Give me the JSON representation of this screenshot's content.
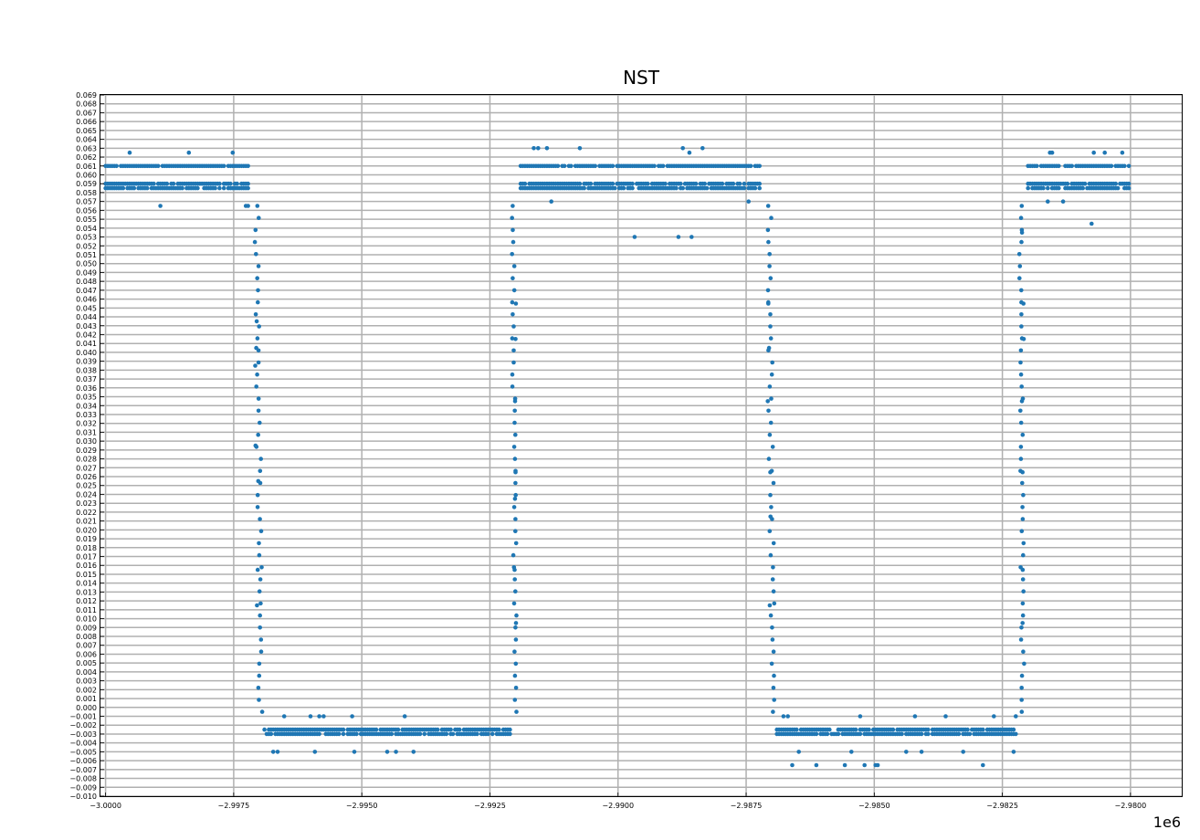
{
  "chart_data": {
    "type": "scatter",
    "title": "NST",
    "xlabel": "",
    "ylabel": "",
    "x_offset_label": "1e6",
    "xlim": [
      -3000100,
      -2979000
    ],
    "ylim": [
      -0.01,
      0.069
    ],
    "grid": true,
    "marker_color": "#1f77b4",
    "x_ticks": [
      -3000000,
      -2997500,
      -2995000,
      -2992500,
      -2990000,
      -2987500,
      -2985000,
      -2982500,
      -2980000
    ],
    "x_tick_labels": [
      "−3.0000",
      "−2.9975",
      "−2.9950",
      "−2.9925",
      "−2.9900",
      "−2.9875",
      "−2.9850",
      "−2.9825",
      "−2.9800"
    ],
    "y_tick_start": -0.01,
    "y_tick_step": 0.001,
    "y_tick_count": 80,
    "series": [
      {
        "segments": [
          {
            "x0": -3000000,
            "x1": -2997200,
            "kind": "high",
            "levels": [
              0.0585,
              0.059,
              0.061
            ],
            "sparse": [
              0.0565,
              0.0625,
              0.063
            ]
          },
          {
            "x0": -2997200,
            "x1": -2996900,
            "kind": "fall",
            "extra": [
              0.0435,
              0.0405,
              0.0385,
              0.0295,
              0.0255,
              0.0155,
              0.0115
            ]
          },
          {
            "x0": -2996900,
            "x1": -2992100,
            "kind": "low",
            "levels": [
              -0.003,
              -0.0025
            ],
            "sparse": [
              -0.001,
              -0.005
            ]
          },
          {
            "x0": -2992100,
            "x1": -2991900,
            "kind": "rise",
            "extra": [
              0.0095,
              0.0155,
              0.0235,
              0.0265,
              0.0345,
              0.0415,
              0.0455
            ]
          },
          {
            "x0": -2991900,
            "x1": -2987200,
            "kind": "high",
            "levels": [
              0.0585,
              0.059,
              0.061
            ],
            "sparse": [
              0.057,
              0.0625,
              0.063,
              0.0545,
              0.053
            ]
          },
          {
            "x0": -2987200,
            "x1": -2986900,
            "kind": "fall",
            "extra": [
              0.0455,
              0.0405,
              0.0345,
              0.0265,
              0.0215,
              0.0115
            ]
          },
          {
            "x0": -2986900,
            "x1": -2982200,
            "kind": "low",
            "levels": [
              -0.003,
              -0.0025
            ],
            "sparse": [
              -0.001,
              -0.005,
              -0.0065
            ]
          },
          {
            "x0": -2982200,
            "x1": -2982000,
            "kind": "rise",
            "extra": [
              0.0095,
              0.0155,
              0.0265,
              0.0345,
              0.0415,
              0.0455,
              0.0535
            ]
          },
          {
            "x0": -2982000,
            "x1": -2980000,
            "kind": "high",
            "levels": [
              0.0585,
              0.059,
              0.061
            ],
            "sparse": [
              0.057,
              0.0625,
              0.0545
            ]
          }
        ]
      }
    ]
  }
}
